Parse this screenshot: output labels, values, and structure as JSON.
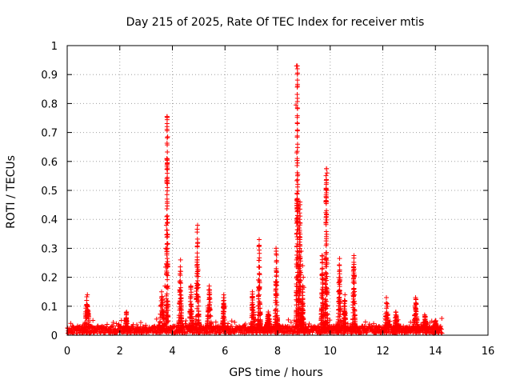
{
  "chart_data": {
    "type": "scatter",
    "title": "Day 215 of 2025, Rate Of TEC Index for receiver mtis",
    "xlabel": "GPS time / hours",
    "ylabel": "ROTI / TECUs",
    "xlim": [
      0,
      16
    ],
    "ylim": [
      0,
      1
    ],
    "grid": true,
    "x_ticks": [
      0,
      2,
      4,
      6,
      8,
      10,
      12,
      14,
      16
    ],
    "y_ticks": [
      0,
      0.1,
      0.2,
      0.3,
      0.4,
      0.5,
      0.6,
      0.7,
      0.8,
      0.9,
      1
    ],
    "x_tick_labels": [
      "0",
      "2",
      "4",
      "6",
      "8",
      "10",
      "12",
      "14",
      "16"
    ],
    "y_tick_labels": [
      "0",
      "0.1",
      "0.2",
      "0.3",
      "0.4",
      "0.5",
      "0.6",
      "0.7",
      "0.8",
      "0.9",
      "1"
    ],
    "marker": "+",
    "marker_color": "#ff0000",
    "series": [
      {
        "name": "ROTI",
        "baseline_range": [
          0.0,
          14.25
        ],
        "baseline_level": 0.02,
        "peaks": [
          {
            "x": 0.75,
            "y": 0.14,
            "w": 0.12
          },
          {
            "x": 2.25,
            "y": 0.08,
            "w": 0.05
          },
          {
            "x": 3.6,
            "y": 0.15,
            "w": 0.12
          },
          {
            "x": 3.8,
            "y": 0.755,
            "w": 0.04
          },
          {
            "x": 4.3,
            "y": 0.26,
            "w": 0.07
          },
          {
            "x": 4.7,
            "y": 0.17,
            "w": 0.08
          },
          {
            "x": 4.95,
            "y": 0.38,
            "w": 0.07
          },
          {
            "x": 5.4,
            "y": 0.17,
            "w": 0.1
          },
          {
            "x": 5.95,
            "y": 0.14,
            "w": 0.06
          },
          {
            "x": 7.05,
            "y": 0.15,
            "w": 0.08
          },
          {
            "x": 7.3,
            "y": 0.33,
            "w": 0.06
          },
          {
            "x": 7.65,
            "y": 0.08,
            "w": 0.1
          },
          {
            "x": 7.95,
            "y": 0.3,
            "w": 0.06
          },
          {
            "x": 8.75,
            "y": 0.93,
            "w": 0.05
          },
          {
            "x": 8.85,
            "y": 0.46,
            "w": 0.06
          },
          {
            "x": 8.95,
            "y": 0.17,
            "w": 0.05
          },
          {
            "x": 9.7,
            "y": 0.275,
            "w": 0.06
          },
          {
            "x": 9.85,
            "y": 0.575,
            "w": 0.05
          },
          {
            "x": 10.35,
            "y": 0.265,
            "w": 0.07
          },
          {
            "x": 10.55,
            "y": 0.14,
            "w": 0.06
          },
          {
            "x": 10.9,
            "y": 0.275,
            "w": 0.06
          },
          {
            "x": 12.15,
            "y": 0.13,
            "w": 0.09
          },
          {
            "x": 12.5,
            "y": 0.08,
            "w": 0.08
          },
          {
            "x": 13.25,
            "y": 0.13,
            "w": 0.1
          },
          {
            "x": 13.6,
            "y": 0.07,
            "w": 0.1
          },
          {
            "x": 14.0,
            "y": 0.05,
            "w": 0.1
          }
        ],
        "outliers": [
          {
            "x": 3.8,
            "y": 0.755
          },
          {
            "x": 3.82,
            "y": 0.685
          },
          {
            "x": 3.79,
            "y": 0.61
          },
          {
            "x": 3.78,
            "y": 0.53
          },
          {
            "x": 3.8,
            "y": 0.455
          },
          {
            "x": 3.77,
            "y": 0.38
          },
          {
            "x": 3.75,
            "y": 0.3
          },
          {
            "x": 3.74,
            "y": 0.235
          },
          {
            "x": 3.72,
            "y": 0.17
          },
          {
            "x": 8.72,
            "y": 0.93
          },
          {
            "x": 8.7,
            "y": 0.795
          },
          {
            "x": 8.73,
            "y": 0.63
          },
          {
            "x": 8.76,
            "y": 0.455
          },
          {
            "x": 8.8,
            "y": 0.445
          },
          {
            "x": 8.84,
            "y": 0.4
          },
          {
            "x": 8.82,
            "y": 0.37
          },
          {
            "x": 8.85,
            "y": 0.33
          },
          {
            "x": 8.9,
            "y": 0.29
          },
          {
            "x": 8.95,
            "y": 0.24
          },
          {
            "x": 8.98,
            "y": 0.2
          },
          {
            "x": 9.0,
            "y": 0.165
          },
          {
            "x": 9.86,
            "y": 0.575
          },
          {
            "x": 9.88,
            "y": 0.56
          },
          {
            "x": 9.85,
            "y": 0.535
          },
          {
            "x": 9.87,
            "y": 0.5
          },
          {
            "x": 9.83,
            "y": 0.46
          },
          {
            "x": 9.84,
            "y": 0.39
          },
          {
            "x": 9.86,
            "y": 0.315
          },
          {
            "x": 9.8,
            "y": 0.265
          }
        ]
      }
    ]
  }
}
